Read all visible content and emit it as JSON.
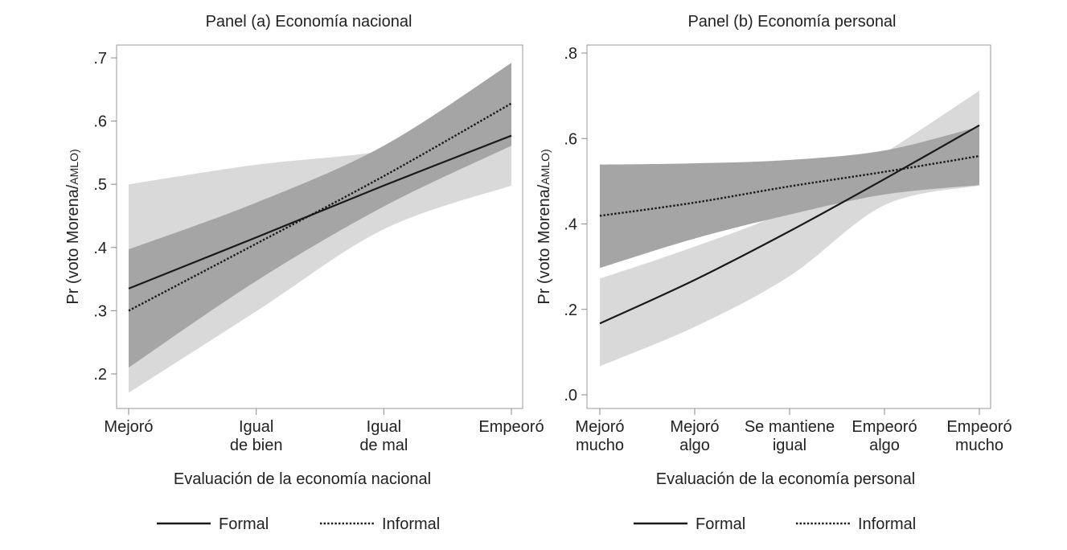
{
  "chart_data": [
    {
      "type": "line",
      "title": "Panel (a) Economía nacional",
      "xlabel": "Evaluación de la economía nacional",
      "ylabel": "Pr (voto Morena/",
      "ylabel_small": "AMLO)",
      "categories": [
        [
          "Mejoró"
        ],
        [
          "Igual",
          "de bien"
        ],
        [
          "Igual",
          "de mal"
        ],
        [
          "Empeoró"
        ]
      ],
      "yticks": [
        0.2,
        0.3,
        0.4,
        0.5,
        0.6,
        0.7
      ],
      "ytick_labels": [
        ".2",
        ".3",
        ".4",
        ".5",
        ".6",
        ".7"
      ],
      "ylim": [
        0.15,
        0.73
      ],
      "grid": false,
      "legend_placement": "bottom",
      "series": [
        {
          "name": "Formal",
          "style": "solid",
          "band_color": "#d9d9d9",
          "values": [
            0.335,
            0.416,
            0.498,
            0.577
          ],
          "ci_low": [
            0.17,
            0.299,
            0.429,
            0.498
          ],
          "ci_high": [
            0.5,
            0.531,
            0.553,
            0.599
          ]
        },
        {
          "name": "Informal",
          "style": "dotted",
          "band_color": "#a5a5a5",
          "values": [
            0.3,
            0.406,
            0.513,
            0.628
          ],
          "ci_low": [
            0.21,
            0.347,
            0.465,
            0.561
          ],
          "ci_high": [
            0.397,
            0.471,
            0.561,
            0.692
          ]
        }
      ]
    },
    {
      "type": "line",
      "title": "Panel (b) Economía personal",
      "xlabel": "Evaluación de la economía personal",
      "ylabel": "Pr (voto Morena/",
      "ylabel_small": "AMLO)",
      "categories": [
        [
          "Mejoró",
          "mucho"
        ],
        [
          "Mejoró",
          "algo"
        ],
        [
          "Se mantiene",
          "igual"
        ],
        [
          "Empeoró",
          "algo"
        ],
        [
          "Empeoró",
          "mucho"
        ]
      ],
      "yticks": [
        0.0,
        0.2,
        0.4,
        0.6,
        0.8
      ],
      "ytick_labels": [
        ".0",
        ".2",
        ".4",
        ".6",
        ".8"
      ],
      "ylim": [
        -0.03,
        0.81
      ],
      "grid": false,
      "legend_placement": "bottom",
      "series": [
        {
          "name": "Formal",
          "style": "solid",
          "band_color": "#d9d9d9",
          "values": [
            0.167,
            0.269,
            0.383,
            0.505,
            0.631
          ],
          "ci_low": [
            0.067,
            0.159,
            0.278,
            0.444,
            0.49
          ],
          "ci_high": [
            0.272,
            0.347,
            0.434,
            0.566,
            0.712
          ]
        },
        {
          "name": "Informal",
          "style": "dotted",
          "band_color": "#a5a5a5",
          "values": [
            0.419,
            0.45,
            0.488,
            0.522,
            0.559
          ],
          "ci_low": [
            0.297,
            0.366,
            0.422,
            0.469,
            0.491
          ],
          "ci_high": [
            0.539,
            0.542,
            0.55,
            0.572,
            0.628
          ]
        }
      ]
    }
  ]
}
